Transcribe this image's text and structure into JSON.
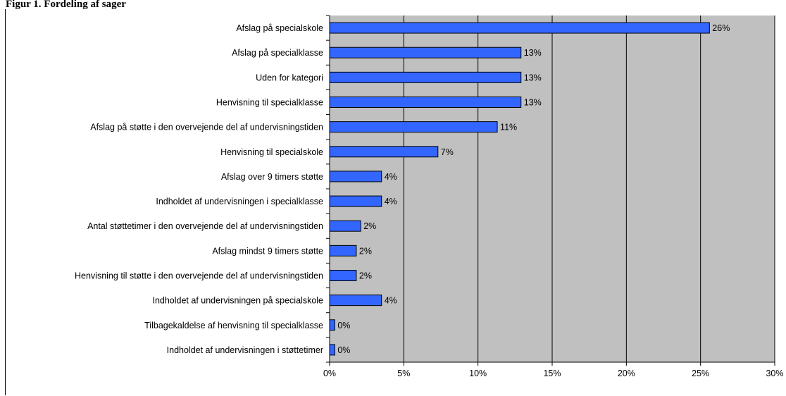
{
  "page": {
    "title": "Figur 1. Fordeling af sager"
  },
  "chart_data": {
    "type": "bar",
    "orientation": "horizontal",
    "title": "",
    "xlabel": "",
    "ylabel": "",
    "xlim": [
      0,
      30
    ],
    "x_ticks": [
      "0%",
      "5%",
      "10%",
      "15%",
      "20%",
      "25%",
      "30%"
    ],
    "grid": "vertical",
    "plot_background": "#c0c0c0",
    "bar_color": "#3366ff",
    "categories": [
      "Afslag på specialskole",
      "Afslag på specialklasse",
      "Uden for kategori",
      "Henvisning til specialklasse",
      "Afslag på støtte i den overvejende del af undervisningstiden",
      "Henvisning til specialskole",
      "Afslag over 9 timers støtte",
      "Indholdet af undervisningen i specialklasse",
      "Antal støttetimer i den overvejende del af undervisningstiden",
      "Afslag mindst 9 timers støtte",
      "Henvisning til støtte i den overvejende del af undervisningstiden",
      "Indholdet af undervisningen på specialskole",
      "Tilbagekaldelse af henvisning til specialklasse",
      "Indholdet af undervisningen i støttetimer"
    ],
    "values": [
      25.6,
      12.9,
      12.9,
      12.9,
      11.3,
      7.3,
      3.5,
      3.5,
      2.1,
      1.8,
      1.8,
      3.5,
      0.35,
      0.35
    ],
    "data_labels": [
      "26%",
      "13%",
      "13%",
      "13%",
      "11%",
      "7%",
      "4%",
      "4%",
      "2%",
      "2%",
      "2%",
      "4%",
      "0%",
      "0%"
    ]
  }
}
